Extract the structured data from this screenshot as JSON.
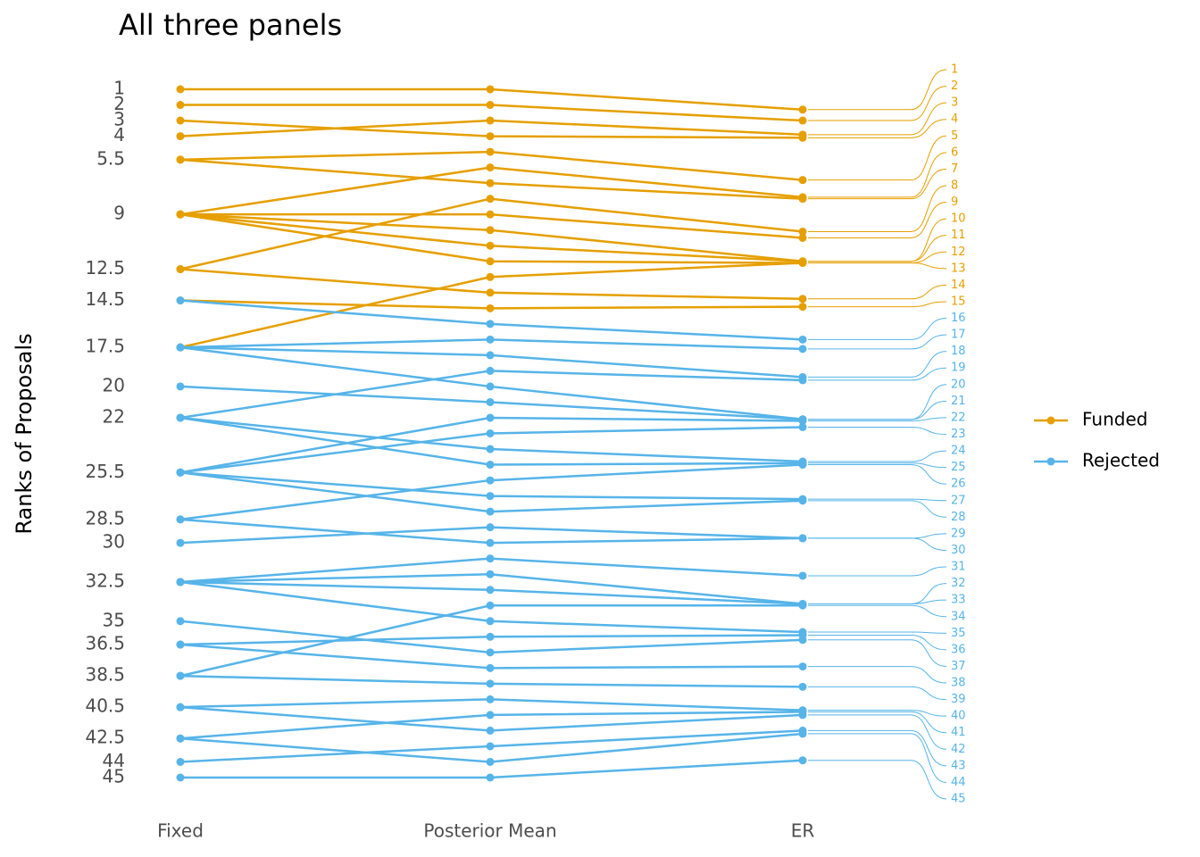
{
  "chart_data": {
    "type": "slope",
    "title": "All three panels",
    "y_label": "Ranks of Proposals",
    "categories": [
      "Fixed",
      "Posterior Mean",
      "ER"
    ],
    "ylim": [
      45,
      1
    ],
    "yticks": [
      1,
      2,
      3,
      4,
      5.5,
      9,
      12.5,
      14.5,
      17.5,
      20,
      22,
      25.5,
      28.5,
      30,
      32.5,
      35,
      36.5,
      38.5,
      40.5,
      42.5,
      44,
      45
    ],
    "grid": false,
    "legend": "right",
    "series": [
      {
        "name": "Funded",
        "color": "#E69F00",
        "labels": [
          1,
          2,
          3,
          4,
          5,
          6,
          7,
          8,
          9,
          10,
          11,
          12,
          13,
          14,
          15
        ],
        "values": [
          [
            1,
            1,
            2.3
          ],
          [
            2,
            2,
            3.0
          ],
          [
            4,
            3,
            3.9
          ],
          [
            3,
            4,
            4.1
          ],
          [
            5.5,
            5,
            6.8
          ],
          [
            9,
            6,
            7.9
          ],
          [
            5.5,
            7,
            8.0
          ],
          [
            12.5,
            8,
            10.1
          ],
          [
            9,
            9,
            10.5
          ],
          [
            9,
            10,
            12.0
          ],
          [
            9,
            11,
            12.0
          ],
          [
            9,
            12,
            12.1
          ],
          [
            17.5,
            13,
            12.1
          ],
          [
            12.5,
            14,
            14.4
          ],
          [
            14.5,
            15,
            14.9
          ]
        ]
      },
      {
        "name": "Rejected",
        "color": "#56B4E9",
        "labels": [
          16,
          17,
          18,
          19,
          20,
          21,
          22,
          23,
          24,
          25,
          26,
          27,
          28,
          29,
          30,
          31,
          32,
          33,
          34,
          35,
          36,
          37,
          38,
          39,
          40,
          41,
          42,
          43,
          44,
          45
        ],
        "values": [
          [
            14.5,
            16,
            17.0
          ],
          [
            17.5,
            17,
            17.6
          ],
          [
            17.5,
            18,
            19.4
          ],
          [
            22,
            19,
            19.6
          ],
          [
            17.5,
            20,
            22.1
          ],
          [
            20,
            21,
            22.1
          ],
          [
            25.5,
            22,
            22.2
          ],
          [
            25.5,
            23,
            22.6
          ],
          [
            22,
            24,
            24.8
          ],
          [
            22,
            25,
            24.9
          ],
          [
            28.5,
            26,
            25.0
          ],
          [
            25.5,
            27,
            27.2
          ],
          [
            25.5,
            28,
            27.3
          ],
          [
            30,
            29,
            29.7
          ],
          [
            28.5,
            30,
            29.7
          ],
          [
            32.5,
            31,
            32.1
          ],
          [
            32.5,
            32,
            33.9
          ],
          [
            32.5,
            33,
            33.9
          ],
          [
            38.5,
            34,
            34.0
          ],
          [
            32.5,
            35,
            35.7
          ],
          [
            36.5,
            36,
            35.9
          ],
          [
            35,
            37,
            36.2
          ],
          [
            36.5,
            38,
            37.9
          ],
          [
            38.5,
            39,
            39.2
          ],
          [
            40.5,
            40,
            40.7
          ],
          [
            42.5,
            41,
            40.8
          ],
          [
            40.5,
            42,
            41.0
          ],
          [
            44,
            43,
            42.0
          ],
          [
            42.5,
            44,
            42.2
          ],
          [
            45,
            45,
            43.9
          ]
        ]
      }
    ]
  }
}
